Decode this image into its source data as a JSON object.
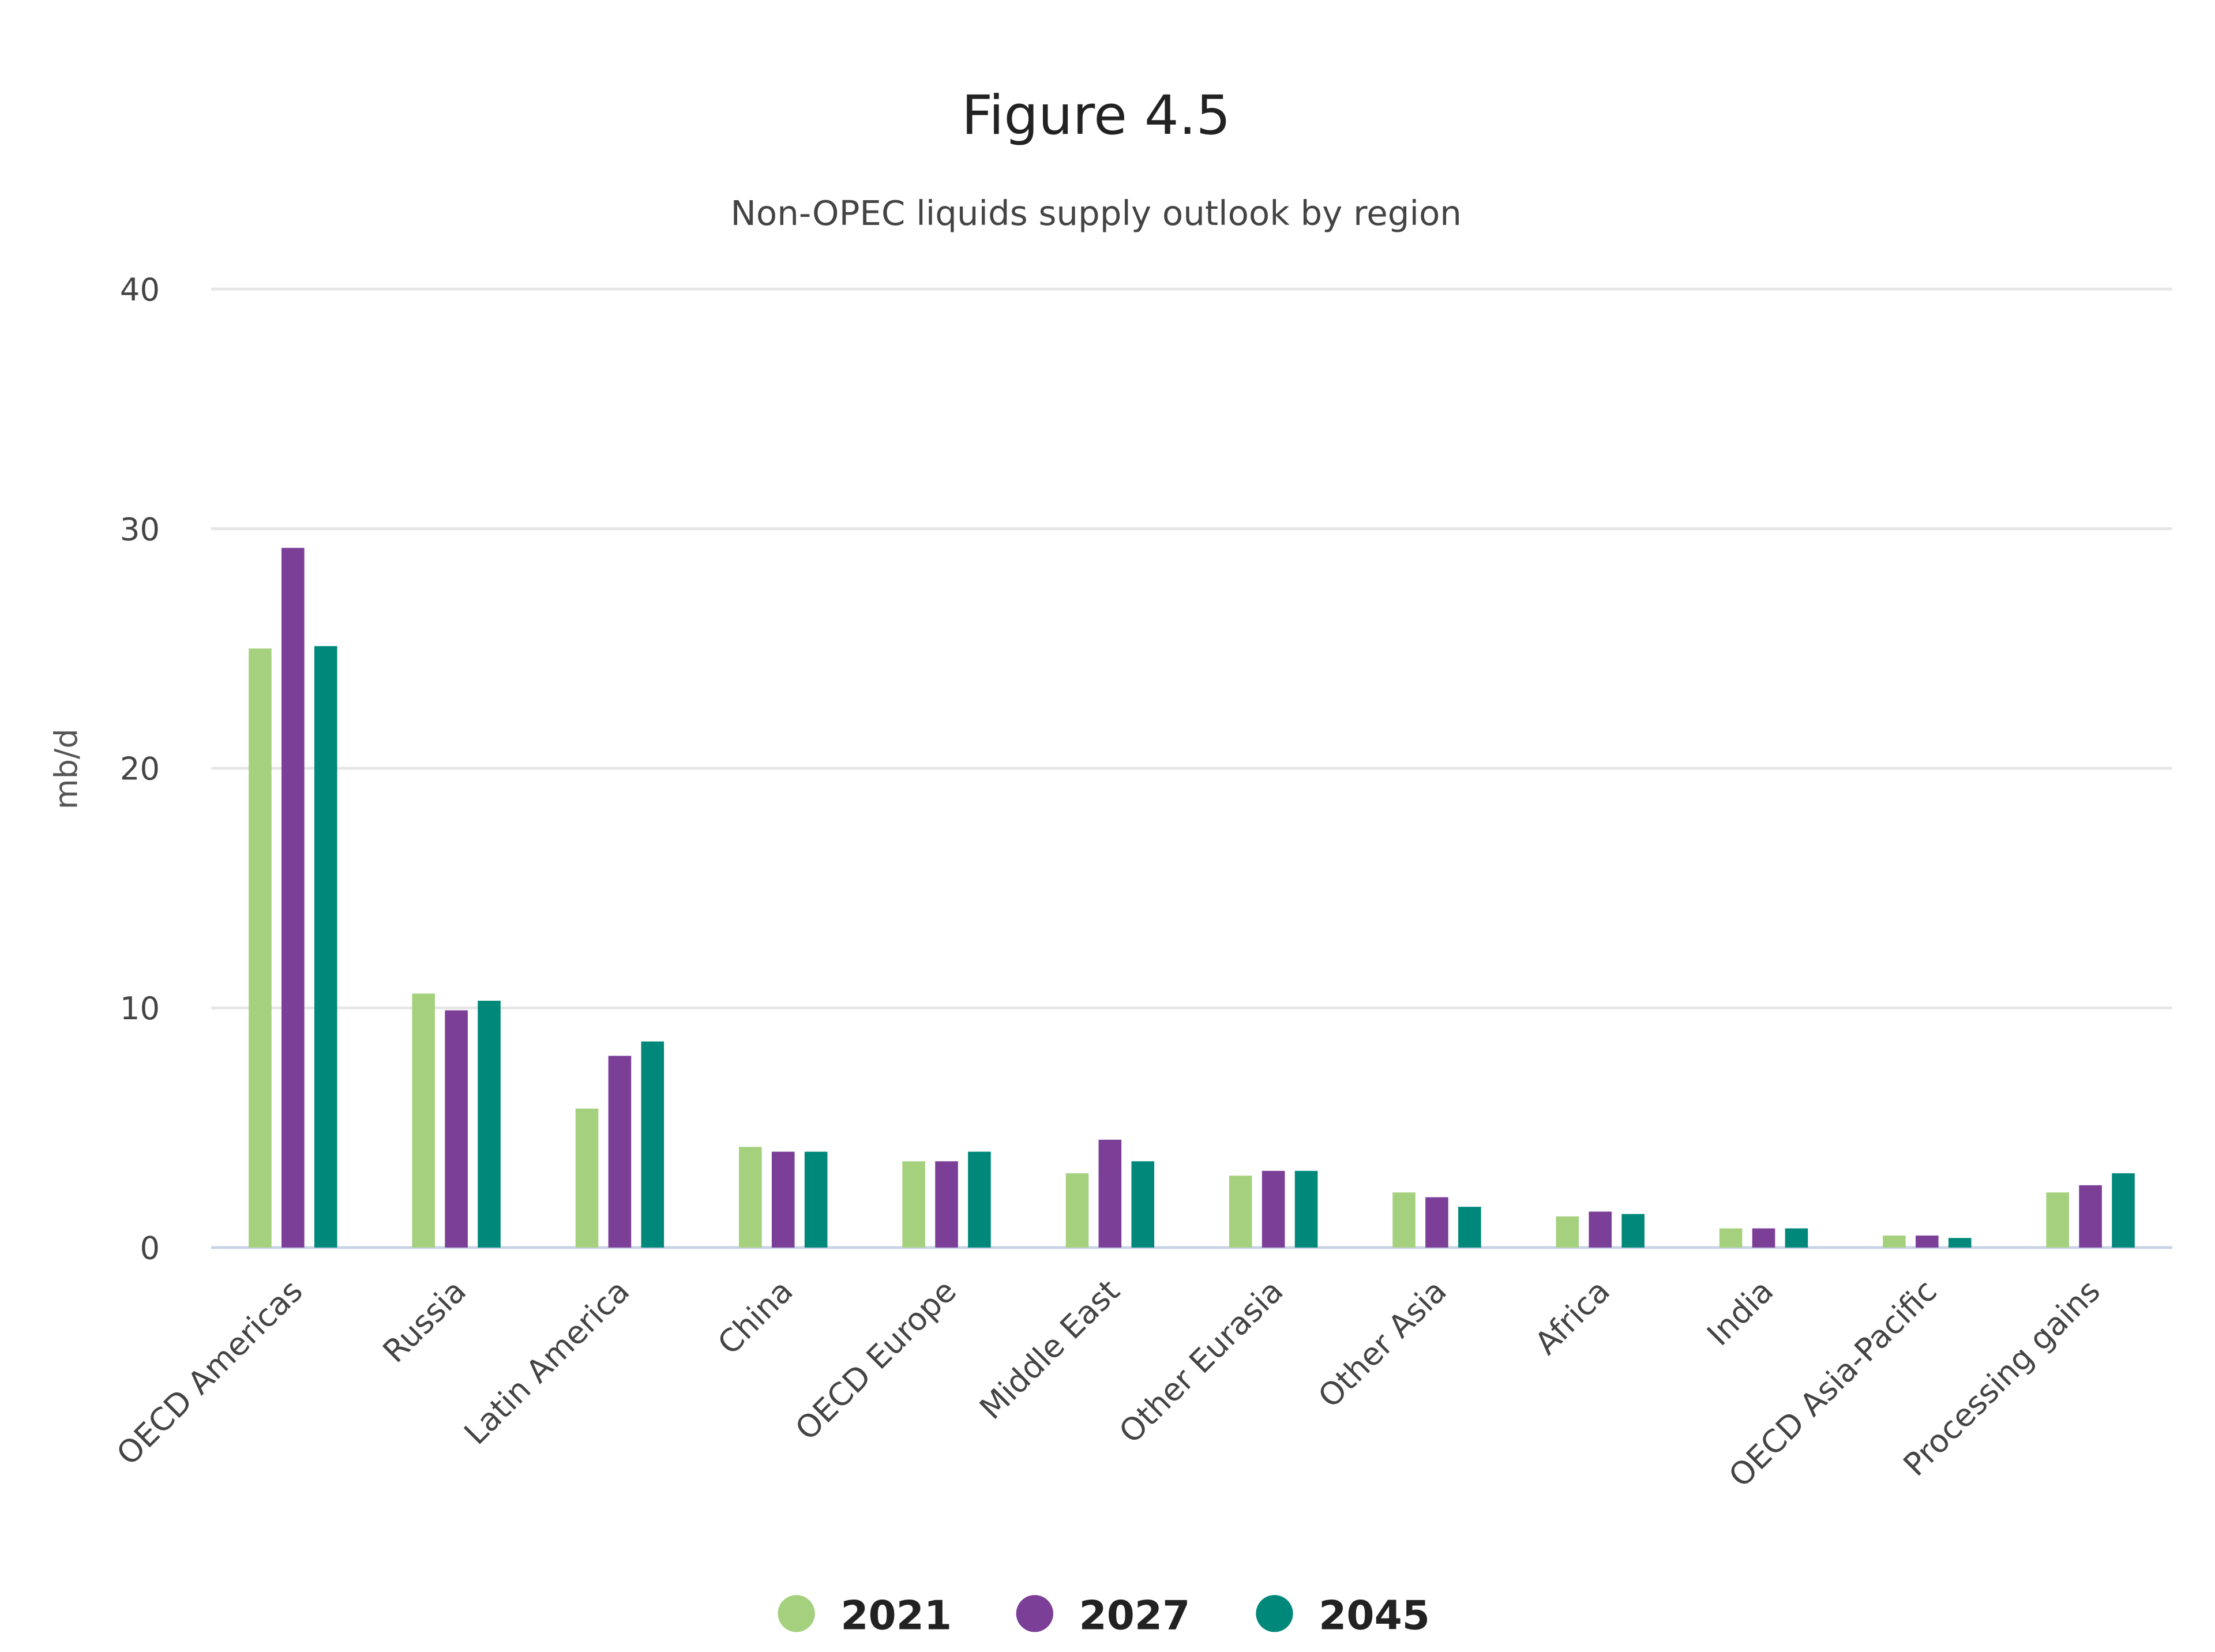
{
  "chart_data": {
    "type": "bar",
    "title": "Figure 4.5",
    "subtitle": "Non-OPEC liquids supply outlook by region",
    "xlabel": "",
    "ylabel": "mb/d",
    "ylim": [
      0,
      40
    ],
    "yticks": [
      0,
      10,
      20,
      30,
      40
    ],
    "grid": true,
    "legend_position": "bottom-center",
    "categories": [
      "OECD Americas",
      "Russia",
      "Latin America",
      "China",
      "OECD Europe",
      "Middle East",
      "Other Eurasia",
      "Other Asia",
      "Africa",
      "India",
      "OECD Asia-Pacific",
      "Processing gains"
    ],
    "series": [
      {
        "name": "2021",
        "color": "#a5d17f",
        "values": [
          25.0,
          10.6,
          5.8,
          4.2,
          3.6,
          3.1,
          3.0,
          2.3,
          1.3,
          0.8,
          0.5,
          2.3
        ]
      },
      {
        "name": "2027",
        "color": "#7b3f98",
        "values": [
          29.2,
          9.9,
          8.0,
          4.0,
          3.6,
          4.5,
          3.2,
          2.1,
          1.5,
          0.8,
          0.5,
          2.6
        ]
      },
      {
        "name": "2045",
        "color": "#00897b",
        "values": [
          25.1,
          10.3,
          8.6,
          4.0,
          4.0,
          3.6,
          3.2,
          1.7,
          1.4,
          0.8,
          0.4,
          3.1
        ]
      }
    ]
  }
}
